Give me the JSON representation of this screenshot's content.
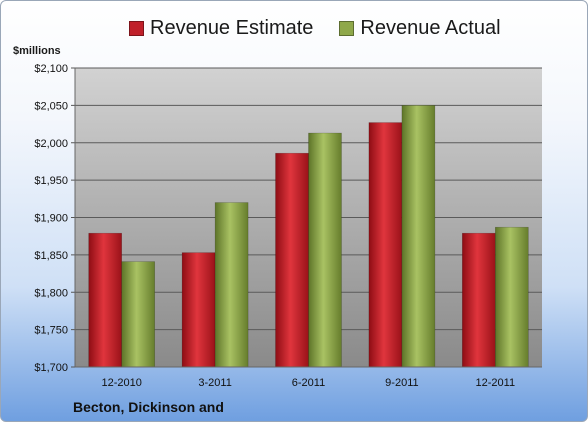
{
  "chart_data": {
    "type": "bar",
    "categories": [
      "12-2010",
      "3-2011",
      "6-2011",
      "9-2011",
      "12-2011"
    ],
    "series": [
      {
        "name": "Revenue Estimate",
        "color": "#c0202a",
        "values": [
          1879,
          1853,
          1986,
          2027,
          1879
        ]
      },
      {
        "name": "Revenue Actual",
        "color": "#8fa84a",
        "values": [
          1841,
          1920,
          2013,
          2050,
          1887
        ]
      }
    ],
    "ylim": [
      1700,
      2100
    ],
    "y_step": 50,
    "yticks": [
      "$1,700",
      "$1,750",
      "$1,800",
      "$1,850",
      "$1,900",
      "$1,950",
      "$2,000",
      "$2,050",
      "$2,100"
    ],
    "ylabel": "$millions",
    "title": "Becton, Dickinson and",
    "grid": true,
    "legend_position": "top"
  }
}
